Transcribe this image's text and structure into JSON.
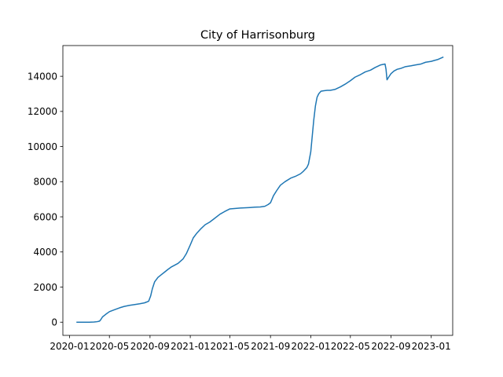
{
  "chart_data": {
    "type": "line",
    "title": "City of Harrisonburg",
    "xlabel": "",
    "ylabel": "",
    "x_ticks": [
      "2020-01",
      "2020-05",
      "2020-09",
      "2021-01",
      "2021-05",
      "2021-09",
      "2022-01",
      "2022-05",
      "2022-09",
      "2023-01"
    ],
    "y_ticks": [
      "0",
      "2000",
      "4000",
      "6000",
      "8000",
      "10000",
      "12000",
      "14000"
    ],
    "xlim": [
      "2019-12-12",
      "2023-03-07"
    ],
    "ylim": [
      -750,
      15750
    ],
    "grid": false,
    "legend": "none",
    "series": [
      {
        "color": "#1f77b4",
        "x": [
          "2020-01-22",
          "2020-03-01",
          "2020-03-15",
          "2020-03-25",
          "2020-04-01",
          "2020-04-05",
          "2020-04-10",
          "2020-04-20",
          "2020-05-01",
          "2020-05-15",
          "2020-06-01",
          "2020-06-15",
          "2020-07-01",
          "2020-07-15",
          "2020-08-01",
          "2020-08-15",
          "2020-08-22",
          "2020-08-28",
          "2020-09-03",
          "2020-09-08",
          "2020-09-15",
          "2020-09-25",
          "2020-10-05",
          "2020-10-15",
          "2020-10-25",
          "2020-11-05",
          "2020-11-15",
          "2020-11-25",
          "2020-12-01",
          "2020-12-10",
          "2020-12-20",
          "2021-01-01",
          "2021-01-10",
          "2021-01-20",
          "2021-02-01",
          "2021-02-15",
          "2021-03-01",
          "2021-03-15",
          "2021-04-01",
          "2021-04-15",
          "2021-05-01",
          "2021-06-01",
          "2021-07-01",
          "2021-07-15",
          "2021-08-01",
          "2021-08-15",
          "2021-08-25",
          "2021-09-01",
          "2021-09-10",
          "2021-09-20",
          "2021-10-01",
          "2021-10-15",
          "2021-11-01",
          "2021-11-15",
          "2021-12-01",
          "2021-12-10",
          "2021-12-20",
          "2021-12-25",
          "2022-01-01",
          "2022-01-05",
          "2022-01-10",
          "2022-01-15",
          "2022-01-20",
          "2022-01-25",
          "2022-02-01",
          "2022-02-10",
          "2022-02-20",
          "2022-03-01",
          "2022-03-15",
          "2022-04-01",
          "2022-04-15",
          "2022-05-01",
          "2022-05-15",
          "2022-06-01",
          "2022-06-15",
          "2022-07-01",
          "2022-07-15",
          "2022-08-01",
          "2022-08-14",
          "2022-08-17",
          "2022-08-20",
          "2022-08-25",
          "2022-09-01",
          "2022-09-10",
          "2022-09-20",
          "2022-10-01",
          "2022-10-15",
          "2022-11-01",
          "2022-11-15",
          "2022-12-01",
          "2022-12-15",
          "2023-01-01",
          "2023-01-10",
          "2023-01-20",
          "2023-02-01",
          "2023-02-07"
        ],
        "values": [
          0,
          0,
          10,
          30,
          60,
          150,
          300,
          450,
          600,
          700,
          820,
          900,
          960,
          1000,
          1050,
          1100,
          1150,
          1200,
          1500,
          1900,
          2300,
          2550,
          2700,
          2850,
          3000,
          3150,
          3250,
          3350,
          3450,
          3600,
          3900,
          4400,
          4800,
          5050,
          5300,
          5550,
          5700,
          5900,
          6150,
          6300,
          6450,
          6500,
          6530,
          6550,
          6560,
          6600,
          6700,
          6800,
          7200,
          7500,
          7800,
          8000,
          8200,
          8300,
          8450,
          8600,
          8800,
          9000,
          9700,
          10500,
          11500,
          12300,
          12800,
          13000,
          13150,
          13180,
          13200,
          13200,
          13250,
          13400,
          13550,
          13750,
          13950,
          14100,
          14250,
          14350,
          14500,
          14650,
          14700,
          14400,
          13800,
          13950,
          14150,
          14300,
          14400,
          14450,
          14550,
          14600,
          14650,
          14700,
          14800,
          14850,
          14900,
          14950,
          15050,
          15100
        ]
      }
    ]
  }
}
